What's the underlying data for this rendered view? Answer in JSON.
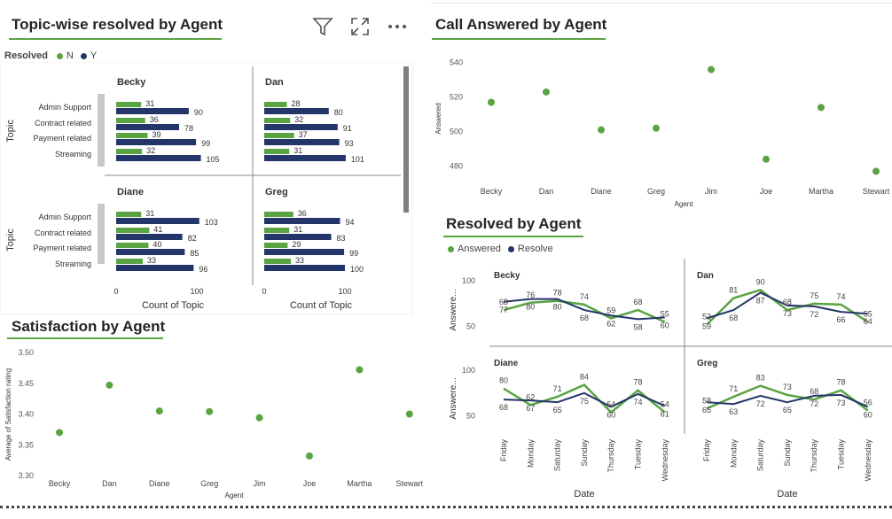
{
  "header": {
    "filter_icon": "filter-icon",
    "focus_icon": "focus-mode-icon",
    "more_icon": "more-options-icon"
  },
  "colors": {
    "N": "#5aa342",
    "Y": "#243569",
    "accent": "#5aa342"
  },
  "chart_data": [
    {
      "id": "topic",
      "type": "bar",
      "title": "Topic-wise resolved by Agent",
      "legend_title": "Resolved",
      "legend": [
        "N",
        "Y"
      ],
      "ylabel": "Topic",
      "xlabel": "Count of Topic",
      "xticks": [
        "0",
        "100"
      ],
      "categories": [
        "Admin Support",
        "Contract related",
        "Payment related",
        "Streaming"
      ],
      "panels": [
        {
          "agent": "Becky",
          "N": [
            31,
            36,
            39,
            32
          ],
          "Y": [
            90,
            78,
            99,
            105
          ]
        },
        {
          "agent": "Dan",
          "N": [
            28,
            32,
            37,
            31
          ],
          "Y": [
            80,
            91,
            93,
            101
          ]
        },
        {
          "agent": "Diane",
          "N": [
            31,
            41,
            40,
            33
          ],
          "Y": [
            103,
            82,
            85,
            96
          ]
        },
        {
          "agent": "Greg",
          "N": [
            36,
            31,
            29,
            33
          ],
          "Y": [
            94,
            83,
            99,
            100
          ]
        }
      ]
    },
    {
      "id": "answered",
      "type": "scatter",
      "title": "Call Answered by Agent",
      "xlabel": "Agent",
      "ylabel": "Answered",
      "categories": [
        "Becky",
        "Dan",
        "Diane",
        "Greg",
        "Jim",
        "Joe",
        "Martha",
        "Stewart"
      ],
      "values": [
        517,
        523,
        501,
        502,
        536,
        484,
        514,
        477
      ],
      "yticks": [
        "480",
        "500",
        "520",
        "540"
      ],
      "ylim": [
        470,
        545
      ]
    },
    {
      "id": "satisfaction",
      "type": "scatter",
      "title": "Satisfaction by Agent",
      "xlabel": "Agent",
      "ylabel": "Average of Satisfaction rating",
      "categories": [
        "Becky",
        "Dan",
        "Diane",
        "Greg",
        "Jim",
        "Joe",
        "Martha",
        "Stewart"
      ],
      "values": [
        3.37,
        3.447,
        3.405,
        3.404,
        3.394,
        3.332,
        3.472,
        3.4
      ],
      "yticks": [
        "3.30",
        "3.35",
        "3.40",
        "3.45",
        "3.50"
      ],
      "ylim": [
        3.3,
        3.5
      ]
    },
    {
      "id": "resolved",
      "type": "line",
      "title": "Resolved by Agent",
      "legend": [
        "Answered",
        "Resolve"
      ],
      "xlabel": "Date",
      "ylabel": "Answere...",
      "categories": [
        "Friday",
        "Monday",
        "Saturday",
        "Sunday",
        "Thursday",
        "Tuesday",
        "Wednesday"
      ],
      "yticks": [
        "50",
        "100"
      ],
      "ylim": [
        40,
        100
      ],
      "panels": [
        {
          "agent": "Becky",
          "Answered": [
            68,
            76,
            78,
            74,
            59,
            68,
            55
          ],
          "Resolve": [
            77,
            80,
            80,
            68,
            62,
            58,
            60
          ]
        },
        {
          "agent": "Dan",
          "Answered": [
            52,
            81,
            90,
            68,
            75,
            74,
            55
          ],
          "Resolve": [
            59,
            68,
            87,
            73,
            72,
            66,
            64
          ]
        },
        {
          "agent": "Diane",
          "Answered": [
            80,
            62,
            71,
            84,
            54,
            78,
            54
          ],
          "Resolve": [
            68,
            67,
            65,
            75,
            60,
            74,
            61
          ]
        },
        {
          "agent": "Greg",
          "Answered": [
            58,
            71,
            83,
            73,
            68,
            78,
            56
          ],
          "Resolve": [
            65,
            63,
            72,
            65,
            72,
            73,
            60
          ]
        }
      ]
    }
  ]
}
